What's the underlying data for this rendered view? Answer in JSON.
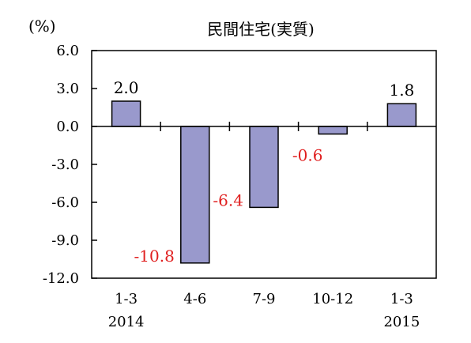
{
  "chart_data": {
    "type": "bar",
    "title": "民間住宅(実質)",
    "ylabel": "(%)",
    "xlabel": "",
    "categories": [
      "1-3",
      "4-6",
      "7-9",
      "10-12",
      "1-3"
    ],
    "year_labels": [
      "2014",
      "",
      "",
      "",
      "2015"
    ],
    "values": [
      2.0,
      -10.8,
      -6.4,
      -0.6,
      1.8
    ],
    "value_labels": [
      "2.0",
      "-10.8",
      "-6.4",
      "-0.6",
      "1.8"
    ],
    "ylim": [
      -12.0,
      6.0
    ],
    "yticks": [
      6.0,
      3.0,
      0.0,
      -3.0,
      -6.0,
      -9.0,
      -12.0
    ],
    "ytick_labels": [
      "6.0",
      "3.0",
      "0.0",
      "-3.0",
      "-6.0",
      "-9.0",
      "-12.0"
    ],
    "grid": false,
    "legend": "none",
    "colors": {
      "bar_fill": "#9999cc",
      "bar_stroke": "#000000",
      "positive_label": "#000000",
      "negative_label": "#e02020"
    }
  }
}
